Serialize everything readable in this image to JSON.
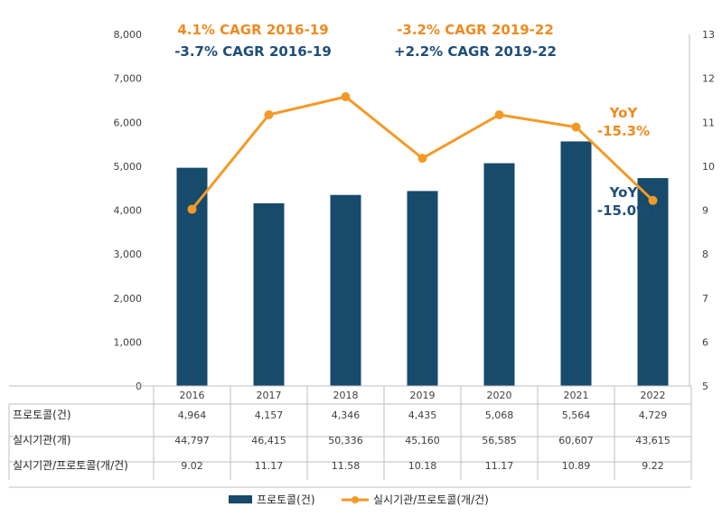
{
  "chart_data": {
    "type": "bar",
    "categories": [
      "2016",
      "2017",
      "2018",
      "2019",
      "2020",
      "2021",
      "2022"
    ],
    "series": [
      {
        "name": "프로토콜(건)",
        "type": "bar",
        "axis": "left",
        "values": [
          4964,
          4157,
          4346,
          4435,
          5068,
          5564,
          4729
        ]
      },
      {
        "name": "실시기관/프로토콜(개/건)",
        "type": "line",
        "axis": "right",
        "values": [
          9.02,
          11.17,
          11.58,
          10.18,
          11.17,
          10.89,
          9.22
        ]
      }
    ],
    "y_left": {
      "min": 0,
      "max": 8000,
      "step": 1000,
      "ticks": [
        "0",
        "1,000",
        "2,000",
        "3,000",
        "4,000",
        "5,000",
        "6,000",
        "7,000",
        "8,000"
      ]
    },
    "y_right": {
      "min": 5,
      "max": 13,
      "step": 1,
      "ticks": [
        "5",
        "6",
        "7",
        "8",
        "9",
        "10",
        "11",
        "12",
        "13"
      ]
    },
    "colors": {
      "bar": "#174a6b",
      "line": "#f39a26",
      "ann_orange": "#f08a1e",
      "ann_navy": "#1f4e79",
      "grid": "#d9d9d9"
    },
    "grid": false,
    "legend_position": "bottom",
    "table": {
      "rows": [
        {
          "label": "프로토콜(건)",
          "values": [
            "4,964",
            "4,157",
            "4,346",
            "4,435",
            "5,068",
            "5,564",
            "4,729"
          ]
        },
        {
          "label": "실시기관(개)",
          "values": [
            "44,797",
            "46,415",
            "50,336",
            "45,160",
            "56,585",
            "60,607",
            "43,615"
          ]
        },
        {
          "label": "실시기관/프로토콜(개/건)",
          "values": [
            "9.02",
            "11.17",
            "11.58",
            "10.18",
            "11.17",
            "10.89",
            "9.22"
          ]
        }
      ]
    },
    "annotations": {
      "cagr_2016_19_line": "4.1% CAGR 2016-19",
      "cagr_2016_19_bar": "-3.7% CAGR 2016-19",
      "cagr_2019_22_line": "-3.2% CAGR 2019-22",
      "cagr_2019_22_bar": "+2.2% CAGR 2019-22",
      "yoy_line_label": "YoY",
      "yoy_line_value": "-15.3%",
      "yoy_bar_label": "YoY",
      "yoy_bar_value": "-15.0%"
    }
  }
}
